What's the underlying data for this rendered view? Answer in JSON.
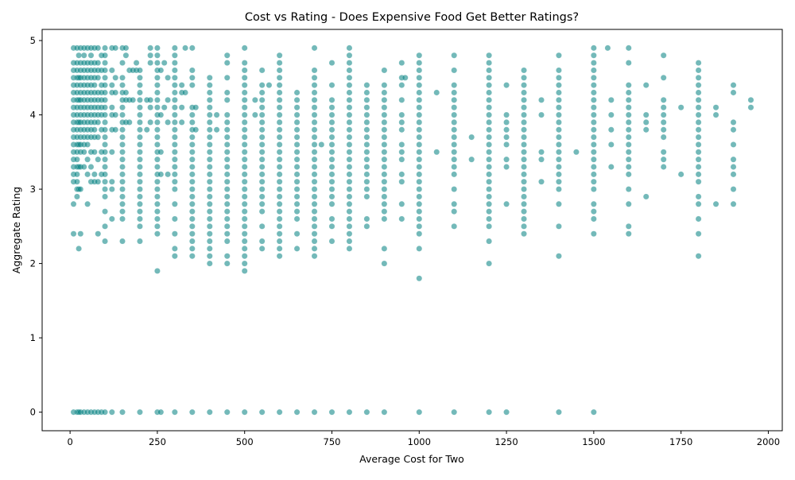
{
  "chart_data": {
    "type": "scatter",
    "title": "Cost vs Rating - Does Expensive Food Get Better Ratings?",
    "xlabel": "Average Cost for Two",
    "ylabel": "Aggregate Rating",
    "xlim": [
      -80,
      2040
    ],
    "ylim": [
      -0.25,
      5.15
    ],
    "xticks": [
      0,
      250,
      500,
      750,
      1000,
      1250,
      1500,
      1750,
      2000
    ],
    "yticks": [
      0,
      1,
      2,
      3,
      4,
      5
    ],
    "grid": false,
    "legend": "none",
    "color": "#008080",
    "opacity": 0.55,
    "columns": [
      {
        "x": 10,
        "ratings": [
          0,
          2.4,
          2.8,
          3.1,
          3.2,
          3.3,
          3.4,
          3.5,
          3.6,
          3.7,
          3.8,
          3.9,
          4.0,
          4.1,
          4.2,
          4.3,
          4.4,
          4.5,
          4.6,
          4.7,
          4.9
        ]
      },
      {
        "x": 20,
        "ratings": [
          0,
          2.9,
          3.0,
          3.1,
          3.2,
          3.3,
          3.4,
          3.5,
          3.6,
          3.7,
          3.8,
          3.9,
          4.0,
          4.1,
          4.2,
          4.3,
          4.4,
          4.5,
          4.6,
          4.7,
          4.9
        ]
      },
      {
        "x": 25,
        "ratings": [
          0,
          2.2,
          3.0,
          3.3,
          3.6,
          3.9,
          4.2,
          4.5,
          4.8
        ]
      },
      {
        "x": 30,
        "ratings": [
          0,
          2.4,
          3.0,
          3.3,
          3.5,
          3.6,
          3.7,
          3.8,
          3.9,
          4.0,
          4.1,
          4.2,
          4.3,
          4.4,
          4.5,
          4.6,
          4.7,
          4.9
        ]
      },
      {
        "x": 40,
        "ratings": [
          0,
          3.3,
          3.5,
          3.6,
          3.7,
          3.8,
          3.9,
          4.0,
          4.1,
          4.2,
          4.3,
          4.4,
          4.5,
          4.6,
          4.7,
          4.8,
          4.9
        ]
      },
      {
        "x": 50,
        "ratings": [
          0,
          2.8,
          3.2,
          3.4,
          3.6,
          3.7,
          3.8,
          3.9,
          4.0,
          4.1,
          4.2,
          4.3,
          4.4,
          4.5,
          4.6,
          4.7,
          4.9
        ]
      },
      {
        "x": 60,
        "ratings": [
          0,
          3.1,
          3.3,
          3.5,
          3.7,
          3.8,
          3.9,
          4.0,
          4.1,
          4.2,
          4.3,
          4.4,
          4.5,
          4.6,
          4.7,
          4.8,
          4.9
        ]
      },
      {
        "x": 70,
        "ratings": [
          0,
          3.1,
          3.2,
          3.5,
          3.7,
          3.8,
          3.9,
          4.0,
          4.1,
          4.2,
          4.3,
          4.4,
          4.5,
          4.6,
          4.7,
          4.9
        ]
      },
      {
        "x": 80,
        "ratings": [
          0,
          2.4,
          3.1,
          3.4,
          3.7,
          3.9,
          4.0,
          4.1,
          4.2,
          4.3,
          4.5,
          4.6,
          4.7,
          4.9
        ]
      },
      {
        "x": 90,
        "ratings": [
          0,
          3.2,
          3.5,
          3.8,
          4.0,
          4.1,
          4.2,
          4.3,
          4.4,
          4.6,
          4.8
        ]
      },
      {
        "x": 100,
        "ratings": [
          0,
          2.3,
          2.5,
          2.7,
          2.9,
          3.0,
          3.1,
          3.2,
          3.3,
          3.4,
          3.5,
          3.6,
          3.7,
          3.8,
          3.9,
          4.0,
          4.1,
          4.2,
          4.3,
          4.4,
          4.5,
          4.6,
          4.7,
          4.8,
          4.9
        ]
      },
      {
        "x": 120,
        "ratings": [
          0,
          2.6,
          3.0,
          3.1,
          3.5,
          3.8,
          4.0,
          4.1,
          4.3,
          4.4,
          4.6,
          4.9
        ]
      },
      {
        "x": 130,
        "ratings": [
          3.8,
          4.0,
          4.3,
          4.5,
          4.9
        ]
      },
      {
        "x": 150,
        "ratings": [
          0,
          2.3,
          2.6,
          2.7,
          2.8,
          2.9,
          3.0,
          3.1,
          3.2,
          3.3,
          3.4,
          3.5,
          3.6,
          3.7,
          3.8,
          3.9,
          4.0,
          4.1,
          4.2,
          4.3,
          4.4,
          4.5,
          4.7,
          4.9
        ]
      },
      {
        "x": 160,
        "ratings": [
          3.9,
          4.2,
          4.3,
          4.8,
          4.9
        ]
      },
      {
        "x": 170,
        "ratings": [
          3.9,
          4.2,
          4.6
        ]
      },
      {
        "x": 180,
        "ratings": [
          4.2,
          4.6
        ]
      },
      {
        "x": 190,
        "ratings": [
          4.6,
          4.7
        ]
      },
      {
        "x": 200,
        "ratings": [
          0,
          2.3,
          2.5,
          2.6,
          2.7,
          2.8,
          2.9,
          3.0,
          3.1,
          3.2,
          3.3,
          3.4,
          3.5,
          3.6,
          3.7,
          3.8,
          3.9,
          4.0,
          4.1,
          4.2,
          4.3,
          4.4,
          4.5,
          4.6
        ]
      },
      {
        "x": 220,
        "ratings": [
          3.8,
          4.2
        ]
      },
      {
        "x": 230,
        "ratings": [
          3.9,
          4.1,
          4.2,
          4.7,
          4.8,
          4.9
        ]
      },
      {
        "x": 250,
        "ratings": [
          0,
          1.9,
          2.4,
          2.5,
          2.6,
          2.7,
          2.8,
          2.9,
          3.0,
          3.1,
          3.2,
          3.3,
          3.4,
          3.5,
          3.6,
          3.7,
          3.8,
          3.9,
          4.0,
          4.1,
          4.2,
          4.3,
          4.4,
          4.5,
          4.6,
          4.7,
          4.8,
          4.9
        ]
      },
      {
        "x": 260,
        "ratings": [
          0,
          3.2,
          3.5,
          4.0,
          4.6
        ]
      },
      {
        "x": 270,
        "ratings": [
          4.1,
          4.7
        ]
      },
      {
        "x": 280,
        "ratings": [
          3.2,
          3.9,
          4.2,
          4.5
        ]
      },
      {
        "x": 300,
        "ratings": [
          0,
          2.1,
          2.2,
          2.4,
          2.6,
          2.8,
          3.0,
          3.1,
          3.2,
          3.3,
          3.4,
          3.5,
          3.6,
          3.7,
          3.8,
          3.9,
          4.0,
          4.1,
          4.2,
          4.3,
          4.4,
          4.5,
          4.6,
          4.7,
          4.8,
          4.9
        ]
      },
      {
        "x": 320,
        "ratings": [
          3.9,
          4.1,
          4.3,
          4.4
        ]
      },
      {
        "x": 330,
        "ratings": [
          4.3,
          4.9
        ]
      },
      {
        "x": 350,
        "ratings": [
          0,
          2.1,
          2.2,
          2.3,
          2.4,
          2.5,
          2.6,
          2.7,
          2.8,
          2.9,
          3.0,
          3.1,
          3.2,
          3.3,
          3.4,
          3.5,
          3.6,
          3.7,
          3.8,
          3.9,
          4.0,
          4.1,
          4.4,
          4.5,
          4.6,
          4.9
        ]
      },
      {
        "x": 360,
        "ratings": [
          3.8,
          4.1
        ]
      },
      {
        "x": 400,
        "ratings": [
          0,
          2.0,
          2.1,
          2.2,
          2.3,
          2.4,
          2.5,
          2.6,
          2.7,
          2.8,
          2.9,
          3.0,
          3.1,
          3.2,
          3.3,
          3.4,
          3.5,
          3.6,
          3.7,
          3.8,
          3.9,
          4.0,
          4.1,
          4.2,
          4.3,
          4.4,
          4.5
        ]
      },
      {
        "x": 420,
        "ratings": [
          3.8,
          4.0
        ]
      },
      {
        "x": 450,
        "ratings": [
          0,
          2.0,
          2.1,
          2.3,
          2.4,
          2.5,
          2.6,
          2.7,
          2.8,
          2.9,
          3.0,
          3.1,
          3.2,
          3.3,
          3.4,
          3.5,
          3.6,
          3.7,
          3.8,
          3.9,
          4.0,
          4.2,
          4.3,
          4.5,
          4.7,
          4.8
        ]
      },
      {
        "x": 500,
        "ratings": [
          0,
          1.9,
          2.0,
          2.1,
          2.2,
          2.3,
          2.4,
          2.5,
          2.6,
          2.7,
          2.8,
          2.9,
          3.0,
          3.1,
          3.2,
          3.3,
          3.4,
          3.5,
          3.6,
          3.7,
          3.8,
          3.9,
          4.0,
          4.1,
          4.2,
          4.3,
          4.4,
          4.5,
          4.6,
          4.7,
          4.9
        ]
      },
      {
        "x": 530,
        "ratings": [
          4.0,
          4.2
        ]
      },
      {
        "x": 550,
        "ratings": [
          0,
          2.2,
          2.3,
          2.5,
          2.7,
          2.8,
          2.9,
          3.0,
          3.1,
          3.2,
          3.3,
          3.4,
          3.5,
          3.6,
          3.7,
          3.8,
          3.9,
          4.0,
          4.1,
          4.2,
          4.3,
          4.4,
          4.6
        ]
      },
      {
        "x": 570,
        "ratings": [
          4.4
        ]
      },
      {
        "x": 600,
        "ratings": [
          0,
          2.1,
          2.2,
          2.3,
          2.4,
          2.5,
          2.6,
          2.7,
          2.8,
          2.9,
          3.0,
          3.1,
          3.2,
          3.3,
          3.4,
          3.5,
          3.6,
          3.7,
          3.8,
          3.9,
          4.0,
          4.1,
          4.2,
          4.3,
          4.4,
          4.5,
          4.6,
          4.7,
          4.8
        ]
      },
      {
        "x": 650,
        "ratings": [
          0,
          2.2,
          2.4,
          2.6,
          2.7,
          2.8,
          2.9,
          3.0,
          3.1,
          3.2,
          3.3,
          3.4,
          3.5,
          3.6,
          3.7,
          3.8,
          3.9,
          4.0,
          4.1,
          4.2,
          4.3
        ]
      },
      {
        "x": 700,
        "ratings": [
          0,
          2.1,
          2.2,
          2.3,
          2.4,
          2.5,
          2.6,
          2.7,
          2.8,
          2.9,
          3.0,
          3.1,
          3.2,
          3.3,
          3.4,
          3.5,
          3.6,
          3.7,
          3.8,
          3.9,
          4.0,
          4.1,
          4.2,
          4.3,
          4.4,
          4.5,
          4.6,
          4.9
        ]
      },
      {
        "x": 720,
        "ratings": [
          3.6
        ]
      },
      {
        "x": 750,
        "ratings": [
          0,
          2.3,
          2.5,
          2.6,
          2.8,
          2.9,
          3.0,
          3.1,
          3.2,
          3.3,
          3.4,
          3.5,
          3.6,
          3.7,
          3.8,
          3.9,
          4.0,
          4.1,
          4.2,
          4.4,
          4.7
        ]
      },
      {
        "x": 800,
        "ratings": [
          0,
          2.2,
          2.3,
          2.4,
          2.5,
          2.6,
          2.7,
          2.8,
          2.9,
          3.0,
          3.1,
          3.2,
          3.3,
          3.4,
          3.5,
          3.6,
          3.7,
          3.8,
          3.9,
          4.0,
          4.1,
          4.2,
          4.3,
          4.4,
          4.5,
          4.6,
          4.7,
          4.8,
          4.9
        ]
      },
      {
        "x": 850,
        "ratings": [
          0,
          2.5,
          2.6,
          2.9,
          3.0,
          3.1,
          3.2,
          3.3,
          3.4,
          3.5,
          3.6,
          3.7,
          3.8,
          3.9,
          4.0,
          4.1,
          4.2,
          4.3,
          4.4
        ]
      },
      {
        "x": 900,
        "ratings": [
          0,
          2.0,
          2.2,
          2.6,
          2.7,
          2.8,
          2.9,
          3.0,
          3.1,
          3.2,
          3.3,
          3.4,
          3.5,
          3.6,
          3.7,
          3.8,
          3.9,
          4.0,
          4.1,
          4.2,
          4.3,
          4.4,
          4.6
        ]
      },
      {
        "x": 950,
        "ratings": [
          2.6,
          2.8,
          3.1,
          3.2,
          3.4,
          3.5,
          3.6,
          3.8,
          3.9,
          4.0,
          4.2,
          4.4,
          4.5,
          4.7
        ]
      },
      {
        "x": 960,
        "ratings": [
          4.5
        ]
      },
      {
        "x": 1000,
        "ratings": [
          0,
          1.8,
          2.2,
          2.4,
          2.5,
          2.6,
          2.7,
          2.8,
          2.9,
          3.0,
          3.1,
          3.2,
          3.3,
          3.4,
          3.5,
          3.6,
          3.7,
          3.8,
          3.9,
          4.0,
          4.1,
          4.2,
          4.3,
          4.4,
          4.5,
          4.6,
          4.7,
          4.8
        ]
      },
      {
        "x": 1050,
        "ratings": [
          3.5,
          4.3
        ]
      },
      {
        "x": 1100,
        "ratings": [
          0,
          2.5,
          2.7,
          2.8,
          3.0,
          3.2,
          3.3,
          3.4,
          3.5,
          3.6,
          3.7,
          3.8,
          3.9,
          4.0,
          4.1,
          4.2,
          4.3,
          4.4,
          4.6,
          4.8
        ]
      },
      {
        "x": 1150,
        "ratings": [
          3.4,
          3.7
        ]
      },
      {
        "x": 1200,
        "ratings": [
          0,
          2.0,
          2.3,
          2.5,
          2.6,
          2.7,
          2.8,
          2.9,
          3.0,
          3.1,
          3.2,
          3.3,
          3.4,
          3.5,
          3.6,
          3.7,
          3.8,
          3.9,
          4.0,
          4.1,
          4.2,
          4.3,
          4.4,
          4.5,
          4.6,
          4.7,
          4.8
        ]
      },
      {
        "x": 1250,
        "ratings": [
          0,
          2.8,
          3.3,
          3.4,
          3.6,
          3.7,
          3.8,
          3.9,
          4.0,
          4.4
        ]
      },
      {
        "x": 1300,
        "ratings": [
          2.4,
          2.5,
          2.6,
          2.7,
          2.8,
          2.9,
          3.0,
          3.1,
          3.2,
          3.3,
          3.4,
          3.5,
          3.6,
          3.7,
          3.8,
          3.9,
          4.0,
          4.1,
          4.2,
          4.3,
          4.4,
          4.5,
          4.6
        ]
      },
      {
        "x": 1350,
        "ratings": [
          3.1,
          3.4,
          3.5,
          4.0,
          4.2
        ]
      },
      {
        "x": 1400,
        "ratings": [
          0,
          2.1,
          2.5,
          2.8,
          3.0,
          3.1,
          3.2,
          3.3,
          3.4,
          3.5,
          3.6,
          3.7,
          3.8,
          3.9,
          4.0,
          4.1,
          4.2,
          4.3,
          4.4,
          4.5,
          4.6,
          4.8
        ]
      },
      {
        "x": 1450,
        "ratings": [
          3.5
        ]
      },
      {
        "x": 1500,
        "ratings": [
          0,
          2.4,
          2.6,
          2.7,
          2.8,
          3.0,
          3.1,
          3.2,
          3.3,
          3.4,
          3.5,
          3.6,
          3.7,
          3.8,
          3.9,
          4.0,
          4.1,
          4.2,
          4.3,
          4.4,
          4.5,
          4.6,
          4.7,
          4.8,
          4.9
        ]
      },
      {
        "x": 1540,
        "ratings": [
          4.9
        ]
      },
      {
        "x": 1550,
        "ratings": [
          3.3,
          3.6,
          3.8,
          4.0,
          4.2
        ]
      },
      {
        "x": 1600,
        "ratings": [
          2.4,
          2.5,
          2.8,
          3.0,
          3.2,
          3.3,
          3.4,
          3.5,
          3.6,
          3.7,
          3.8,
          3.9,
          4.0,
          4.1,
          4.2,
          4.3,
          4.4,
          4.7,
          4.9
        ]
      },
      {
        "x": 1650,
        "ratings": [
          2.9,
          3.8,
          3.9,
          4.0,
          4.4
        ]
      },
      {
        "x": 1700,
        "ratings": [
          3.3,
          3.4,
          3.5,
          3.7,
          3.8,
          3.9,
          4.0,
          4.1,
          4.2,
          4.5,
          4.8
        ]
      },
      {
        "x": 1750,
        "ratings": [
          3.2,
          4.1
        ]
      },
      {
        "x": 1800,
        "ratings": [
          2.1,
          2.4,
          2.6,
          2.8,
          2.9,
          3.1,
          3.2,
          3.3,
          3.4,
          3.5,
          3.6,
          3.7,
          3.8,
          3.9,
          4.0,
          4.1,
          4.2,
          4.3,
          4.4,
          4.5,
          4.6,
          4.7
        ]
      },
      {
        "x": 1850,
        "ratings": [
          2.8,
          4.0,
          4.1
        ]
      },
      {
        "x": 1900,
        "ratings": [
          2.8,
          3.0,
          3.2,
          3.3,
          3.4,
          3.6,
          3.8,
          3.9,
          4.3,
          4.4
        ]
      },
      {
        "x": 1950,
        "ratings": [
          4.1,
          4.2
        ]
      }
    ]
  }
}
